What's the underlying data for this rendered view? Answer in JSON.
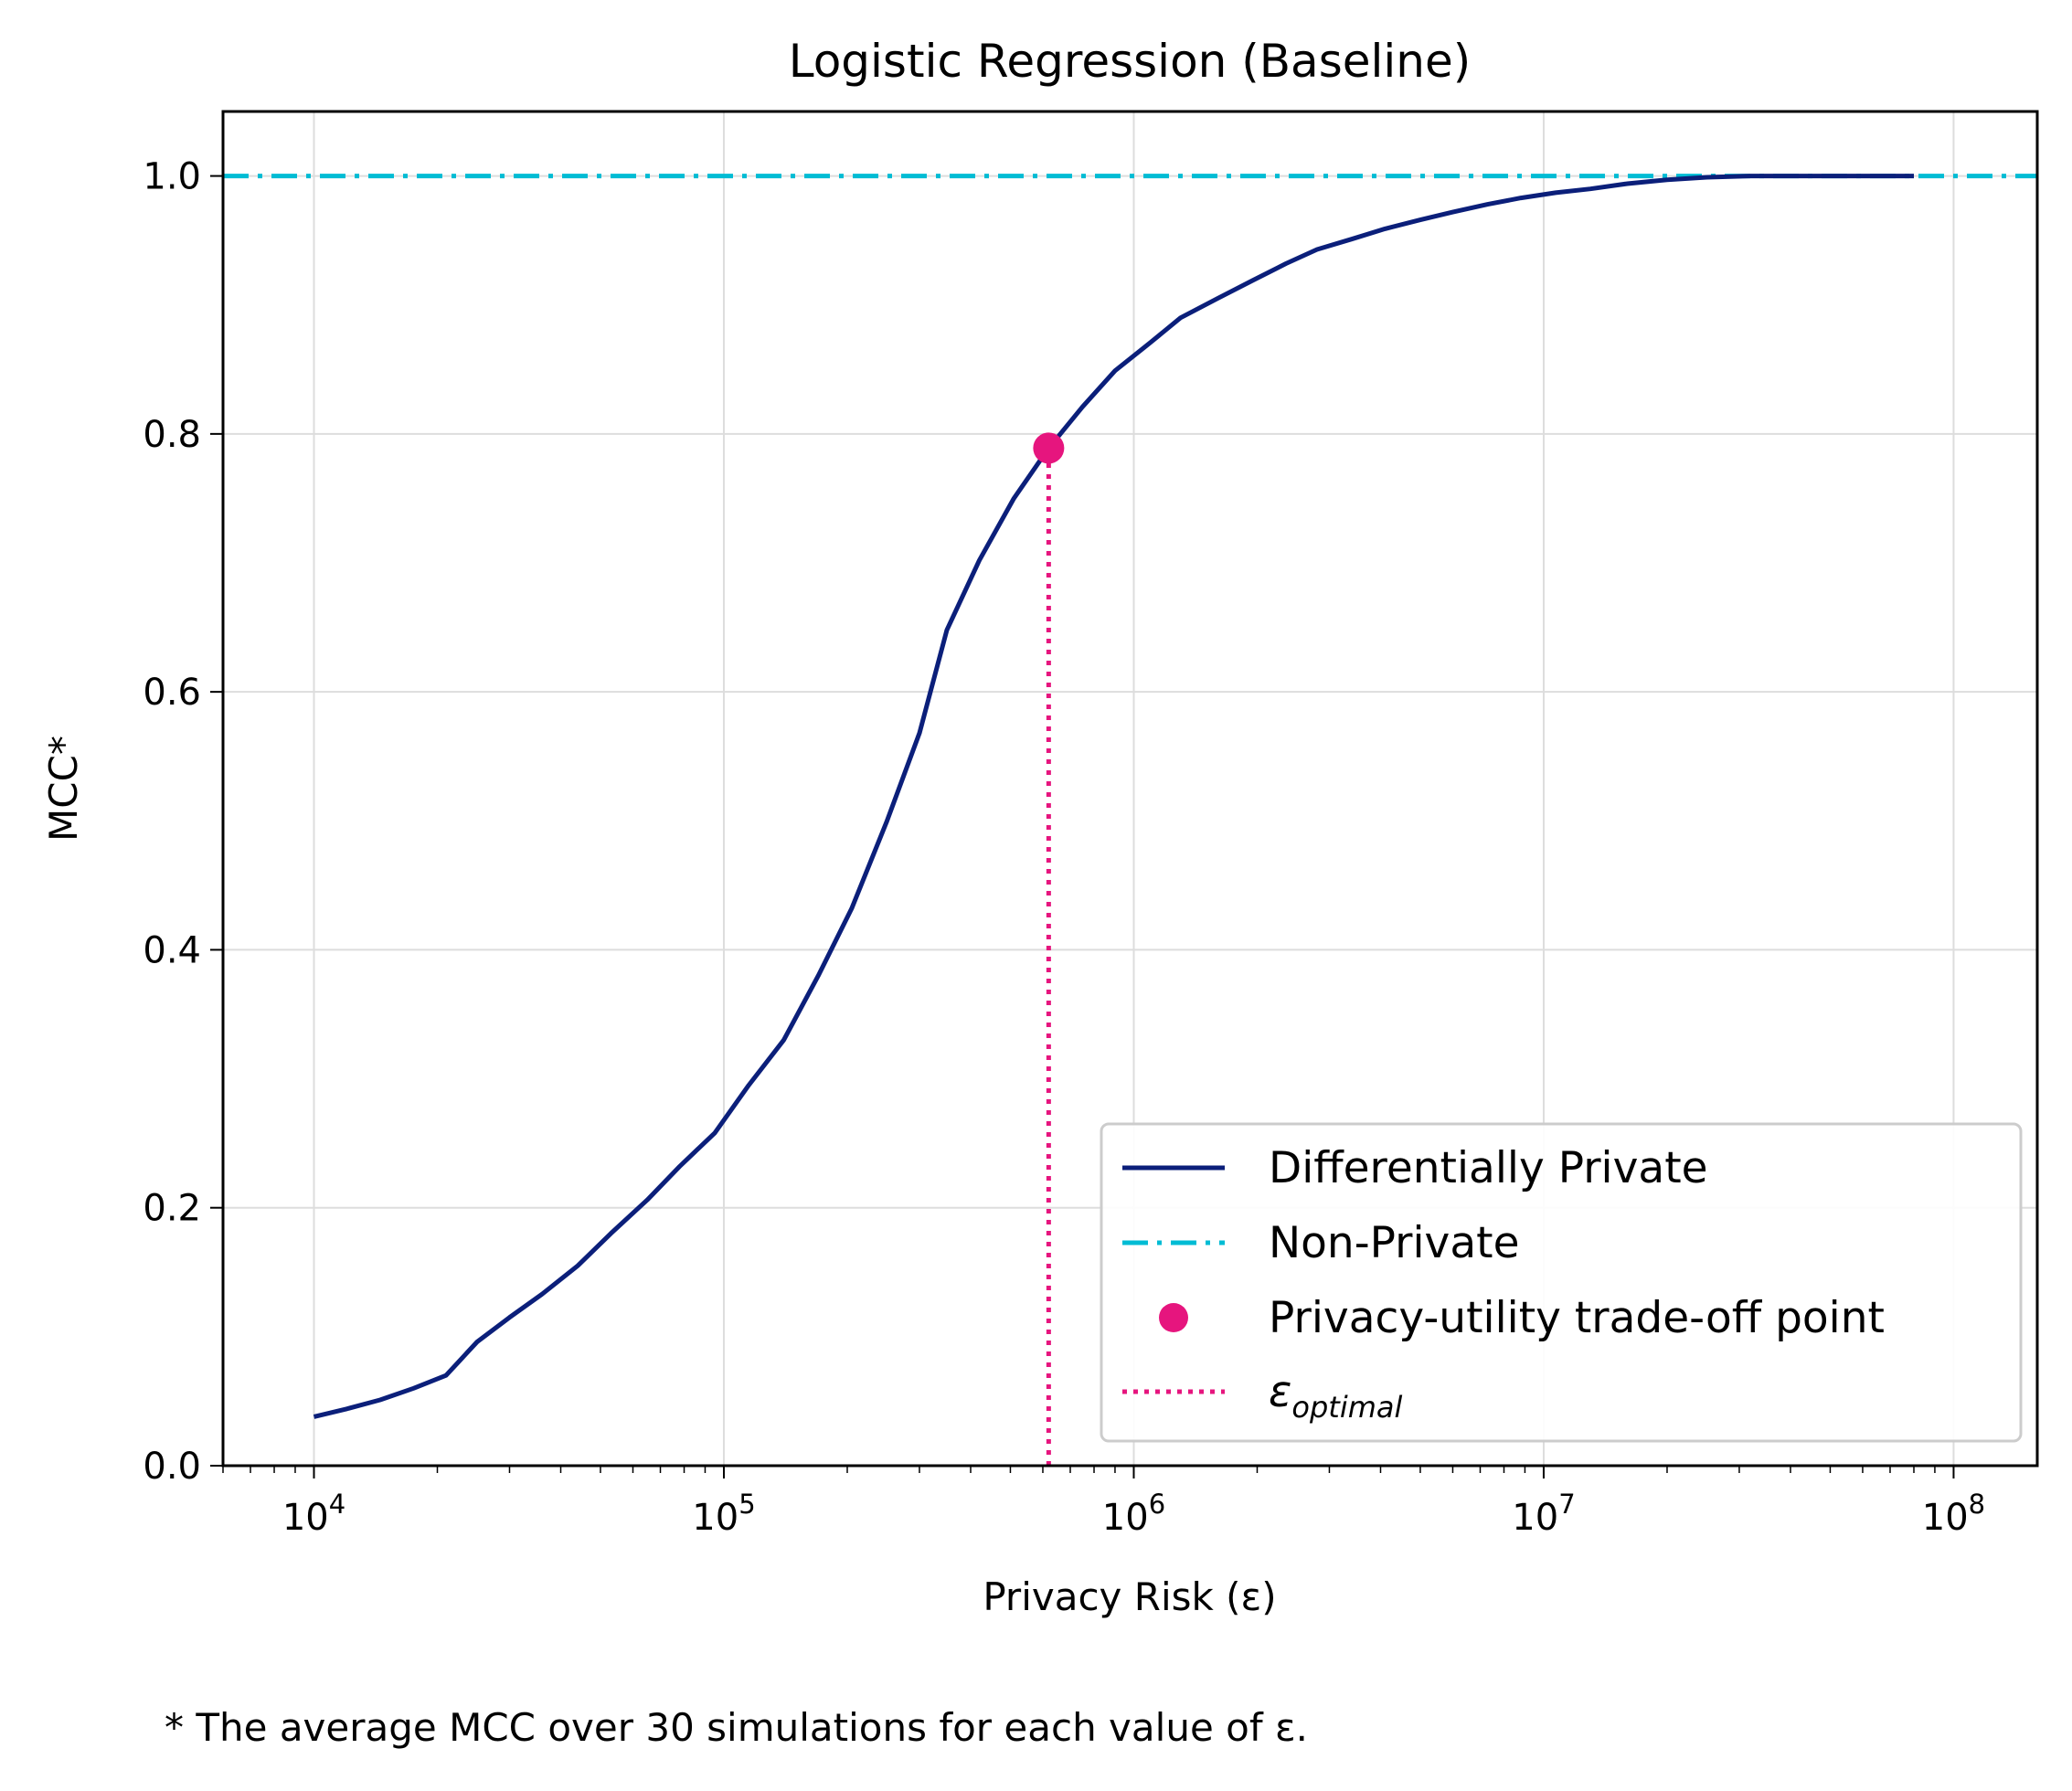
{
  "chart_data": {
    "type": "line",
    "title": "Logistic Regression (Baseline)",
    "xlabel": "Privacy Risk (ε)",
    "ylabel": "MCC*",
    "xscale": "log",
    "xlim": [
      6000,
      160000000
    ],
    "ylim": [
      0.0,
      1.05
    ],
    "xticks": [
      {
        "value": 10000,
        "base": "10",
        "exp": "4"
      },
      {
        "value": 100000,
        "base": "10",
        "exp": "5"
      },
      {
        "value": 1000000,
        "base": "10",
        "exp": "6"
      },
      {
        "value": 10000000,
        "base": "10",
        "exp": "7"
      },
      {
        "value": 100000000,
        "base": "10",
        "exp": "8"
      }
    ],
    "yticks": [
      {
        "value": 0.0,
        "label": "0.0"
      },
      {
        "value": 0.2,
        "label": "0.2"
      },
      {
        "value": 0.4,
        "label": "0.4"
      },
      {
        "value": 0.6,
        "label": "0.6"
      },
      {
        "value": 0.8,
        "label": "0.8"
      },
      {
        "value": 1.0,
        "label": "1.0"
      }
    ],
    "grid": true,
    "legend_position": "lower-right",
    "series": [
      {
        "name": "Differentially Private",
        "style": "solid",
        "color": "#0b1f7a",
        "points": [
          [
            10000,
            0.038
          ],
          [
            12000,
            0.044
          ],
          [
            14500,
            0.051
          ],
          [
            17500,
            0.06
          ],
          [
            21000,
            0.07
          ],
          [
            25000,
            0.096
          ],
          [
            30000,
            0.115
          ],
          [
            36000,
            0.133
          ],
          [
            44000,
            0.155
          ],
          [
            53000,
            0.18
          ],
          [
            65000,
            0.206
          ],
          [
            78000,
            0.232
          ],
          [
            95000,
            0.258
          ],
          [
            115000,
            0.295
          ],
          [
            140000,
            0.33
          ],
          [
            170000,
            0.38
          ],
          [
            205000,
            0.432
          ],
          [
            250000,
            0.5
          ],
          [
            300000,
            0.568
          ],
          [
            350000,
            0.648
          ],
          [
            420000,
            0.702
          ],
          [
            510000,
            0.75
          ],
          [
            620000,
            0.789
          ],
          [
            750000,
            0.821
          ],
          [
            900000,
            0.849
          ],
          [
            1100000,
            0.871
          ],
          [
            1300000,
            0.89
          ],
          [
            1600000,
            0.905
          ],
          [
            1950000,
            0.919
          ],
          [
            2350000,
            0.932
          ],
          [
            2800000,
            0.943
          ],
          [
            3400000,
            0.951
          ],
          [
            4100000,
            0.959
          ],
          [
            5000000,
            0.966
          ],
          [
            6000000,
            0.972
          ],
          [
            7300000,
            0.978
          ],
          [
            8800000,
            0.983
          ],
          [
            10700000,
            0.987
          ],
          [
            13000000,
            0.99
          ],
          [
            16000000,
            0.994
          ],
          [
            20000000,
            0.997
          ],
          [
            25000000,
            0.999
          ],
          [
            32000000,
            1.0
          ],
          [
            45000000,
            1.0
          ],
          [
            62000000,
            1.0
          ],
          [
            80000000,
            1.0
          ]
        ]
      },
      {
        "name": "Non-Private",
        "style": "dashdot",
        "color": "#00bcd4",
        "y": 1.0
      },
      {
        "name": "Privacy-utility trade-off point",
        "style": "marker",
        "color": "#e6157e",
        "points": [
          [
            620000,
            0.789
          ]
        ]
      },
      {
        "name": "ε",
        "name_subscript": "optimal",
        "style": "dotted",
        "color": "#e6157e",
        "x": 620000
      }
    ]
  },
  "footnote": "* The average MCC over 30 simulations for each value of ε."
}
